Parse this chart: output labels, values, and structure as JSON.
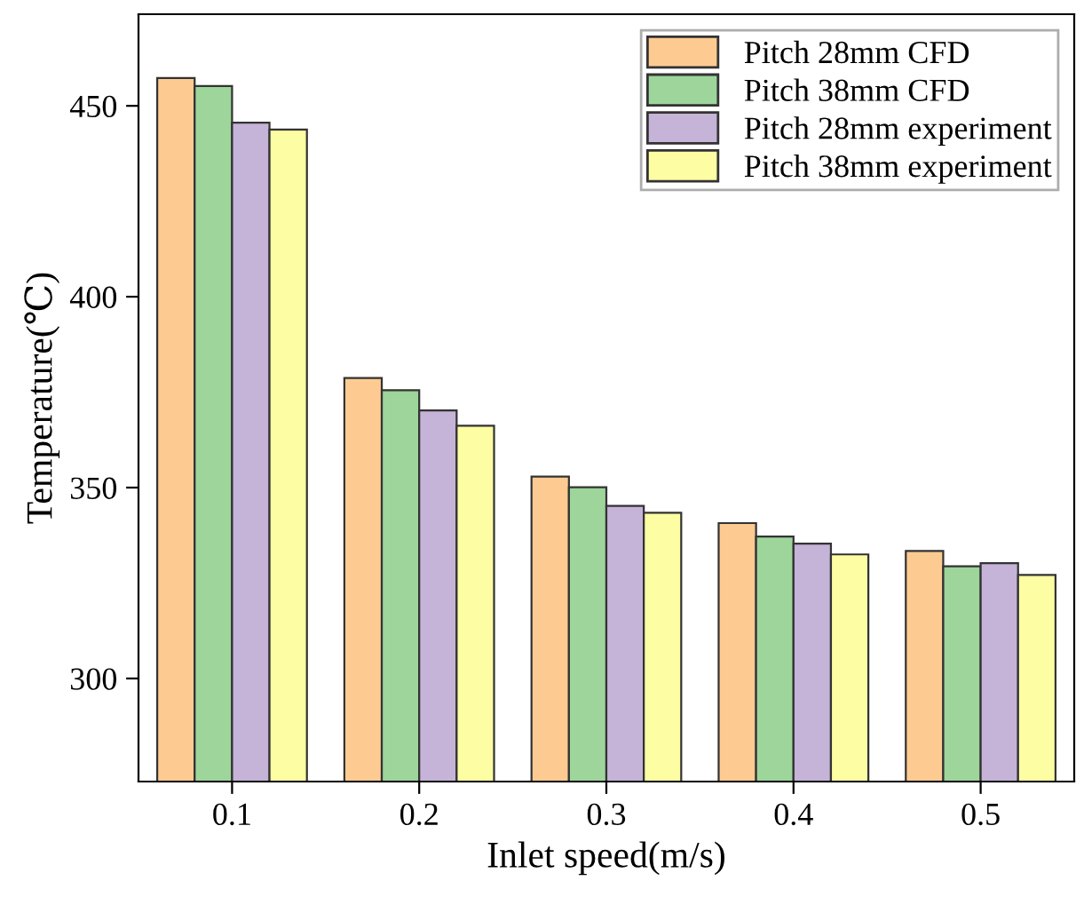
{
  "chart_data": {
    "type": "bar",
    "xlabel": "Inlet speed(m/s)",
    "ylabel": "Temperature(℃)",
    "categories": [
      "0.1",
      "0.2",
      "0.3",
      "0.4",
      "0.5"
    ],
    "series": [
      {
        "name": "Pitch 28mm CFD",
        "color": "#fdcb92",
        "values": [
          457.3,
          378.7,
          352.9,
          340.7,
          333.4
        ]
      },
      {
        "name": "Pitch 38mm CFD",
        "color": "#9dd59b",
        "values": [
          455.2,
          375.5,
          350.1,
          337.2,
          329.4
        ]
      },
      {
        "name": "Pitch 28mm experiment",
        "color": "#c6b3d8",
        "values": [
          445.6,
          370.2,
          345.2,
          335.3,
          330.2
        ]
      },
      {
        "name": "Pitch 38mm experiment",
        "color": "#fdfea3",
        "values": [
          443.8,
          366.2,
          343.4,
          332.5,
          327.1
        ]
      }
    ],
    "ylim": [
      273,
      474
    ],
    "yticks": [
      300,
      350,
      400,
      450
    ],
    "grid": false,
    "legend": "top right"
  }
}
